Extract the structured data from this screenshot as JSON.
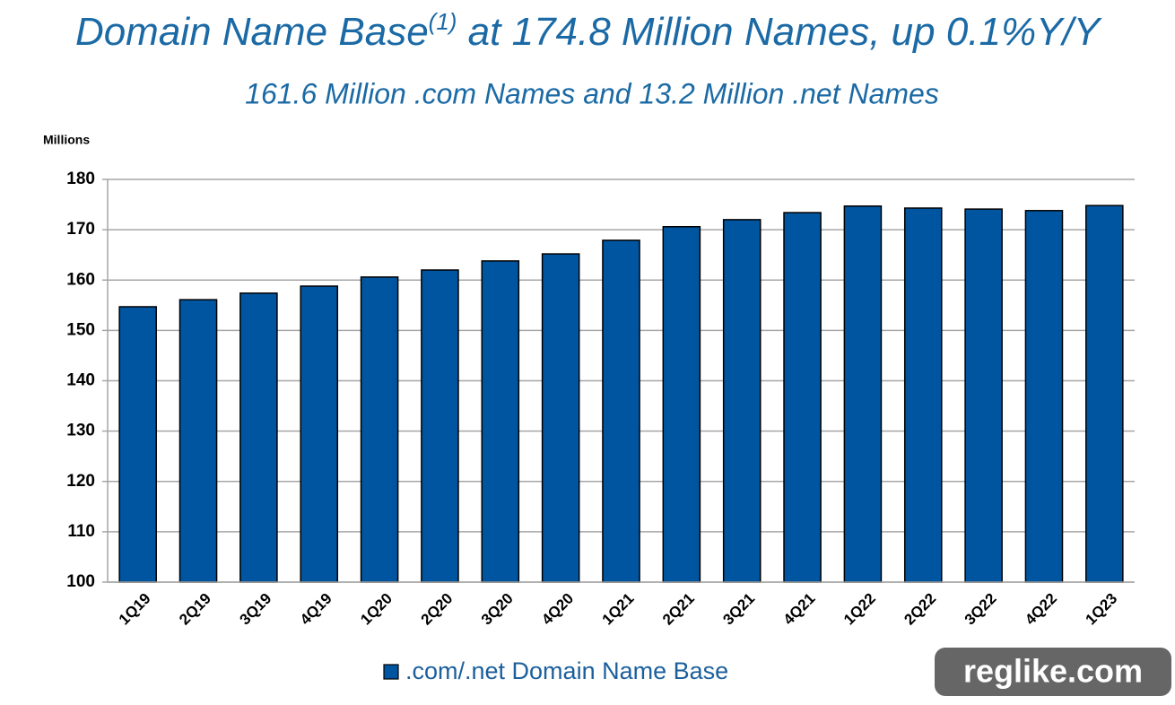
{
  "chart_data": {
    "type": "bar",
    "title": [
      "Domain Name Base",
      "(1)",
      " at 174.8 Million Names, up 0.1%Y/Y"
    ],
    "subtitle": "161.6 Million .com Names and 13.2 Million .net Names",
    "y_label": "Millions",
    "categories": [
      "1Q19",
      "2Q19",
      "3Q19",
      "4Q19",
      "1Q20",
      "2Q20",
      "3Q20",
      "4Q20",
      "1Q21",
      "2Q21",
      "3Q21",
      "4Q21",
      "1Q22",
      "2Q22",
      "3Q22",
      "4Q22",
      "1Q23"
    ],
    "series": [
      {
        "name": ".com/.net Domain Name Base",
        "color": "#0055a0",
        "values": [
          154.7,
          156.1,
          157.4,
          158.8,
          160.6,
          162.0,
          163.8,
          165.2,
          167.9,
          170.6,
          172.0,
          173.4,
          174.7,
          174.3,
          174.1,
          173.8,
          174.8
        ]
      }
    ],
    "ylim": [
      100,
      180
    ],
    "yticks": [
      100,
      110,
      120,
      130,
      140,
      150,
      160,
      170,
      180
    ],
    "grid": true,
    "legend": "bottom",
    "watermark": "reglike.com"
  }
}
